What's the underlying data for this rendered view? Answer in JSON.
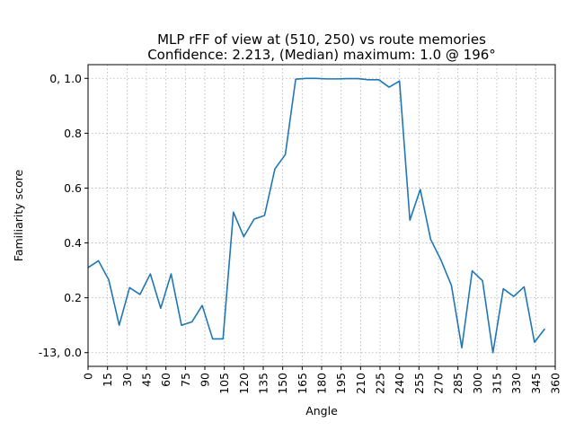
{
  "chart_data": {
    "type": "line",
    "title_line1": "MLP rFF of view at (510, 250) vs route memories",
    "title_line2": "Confidence: 2.213, (Median) maximum: 1.0 @ 196°",
    "xlabel": "Angle",
    "ylabel": "Familiarity score",
    "xlim": [
      0,
      360
    ],
    "ylim": [
      -0.05,
      1.05
    ],
    "grid": true,
    "line_color": "#1f77b4",
    "x_ticks": [
      0,
      15,
      30,
      45,
      60,
      75,
      90,
      105,
      120,
      135,
      150,
      165,
      180,
      195,
      210,
      225,
      240,
      255,
      270,
      285,
      300,
      315,
      330,
      345,
      360
    ],
    "x_tick_labels": [
      "0",
      "15",
      "30",
      "45",
      "60",
      "75",
      "90",
      "105",
      "120",
      "135",
      "150",
      "165",
      "180",
      "195",
      "210",
      "225",
      "240",
      "255",
      "270",
      "285",
      "300",
      "315",
      "330",
      "345",
      "360"
    ],
    "y_ticks": [
      0.0,
      0.2,
      0.4,
      0.6,
      0.8,
      1.0
    ],
    "y_tick_labels": [
      "-13, 0.0",
      "0.2",
      "0.4",
      "0.6",
      "0.8",
      "0, 1.0"
    ],
    "series": [
      {
        "x": [
          0,
          8,
          16,
          24,
          32,
          40,
          48,
          56,
          64,
          72,
          80,
          88,
          96,
          104,
          112,
          120,
          128,
          136,
          144,
          152,
          160,
          168,
          176,
          184,
          192,
          200,
          208,
          216,
          224,
          232,
          240,
          248,
          256,
          264,
          272,
          280,
          288,
          296,
          304,
          312,
          320,
          328,
          336,
          344,
          352
        ],
        "y": [
          0.31,
          0.335,
          0.265,
          0.1,
          0.237,
          0.212,
          0.287,
          0.162,
          0.287,
          0.1,
          0.112,
          0.172,
          0.05,
          0.05,
          0.512,
          0.423,
          0.487,
          0.5,
          0.67,
          0.722,
          0.997,
          1.0,
          1.0,
          0.998,
          0.998,
          0.999,
          0.999,
          0.995,
          0.995,
          0.968,
          0.99,
          0.483,
          0.595,
          0.413,
          0.337,
          0.245,
          0.018,
          0.298,
          0.262,
          0.0,
          0.233,
          0.205,
          0.24,
          0.038,
          0.087
        ]
      }
    ]
  }
}
